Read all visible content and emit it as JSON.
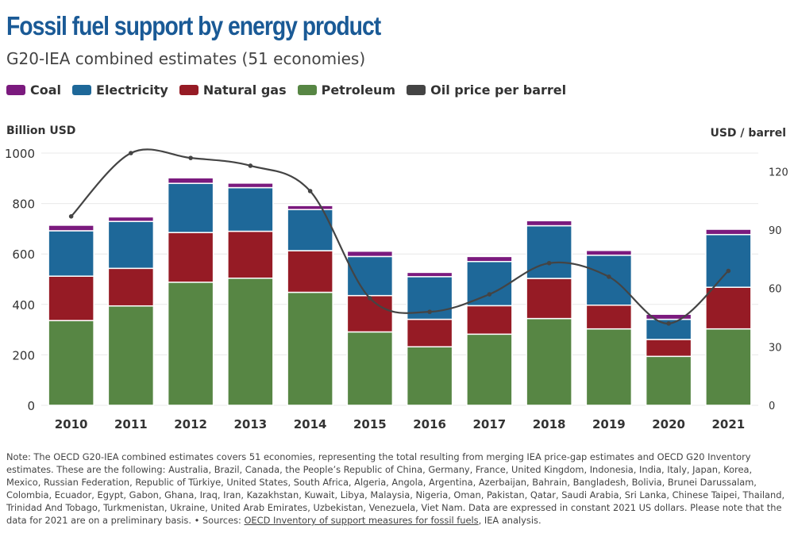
{
  "title": "Fossil fuel support by energy product",
  "subtitle": "G20-IEA combined estimates (51 economies)",
  "colors": {
    "coal": "#7b1a7e",
    "electricity": "#1e6899",
    "natural_gas": "#961b25",
    "petroleum": "#578644",
    "oil_price": "#444444"
  },
  "chart_data": {
    "type": "bar",
    "stacked": true,
    "categories": [
      "2010",
      "2011",
      "2012",
      "2013",
      "2014",
      "2015",
      "2016",
      "2017",
      "2018",
      "2019",
      "2020",
      "2021"
    ],
    "ylabel": "Billion USD",
    "y2label": "USD / barrel",
    "ylim": [
      0,
      1000
    ],
    "y2lim": [
      0,
      129.5
    ],
    "yticks": [
      "0",
      "200",
      "400",
      "600",
      "800",
      "1000"
    ],
    "y2ticks": [
      "0",
      "30",
      "60",
      "90",
      "120"
    ],
    "grid": true,
    "legend": "top-left",
    "series": [
      {
        "name": "Petroleum",
        "values": [
          336,
          394,
          488,
          504,
          448,
          291,
          232,
          282,
          344,
          303,
          194,
          303
        ]
      },
      {
        "name": "Natural gas",
        "values": [
          176,
          149,
          197,
          186,
          165,
          144,
          109,
          113,
          159,
          94,
          67,
          165
        ]
      },
      {
        "name": "Electricity",
        "values": [
          180,
          186,
          195,
          173,
          163,
          155,
          169,
          175,
          209,
          198,
          80,
          209
        ]
      },
      {
        "name": "Coal",
        "values": [
          22,
          18,
          22,
          18,
          16,
          21,
          17,
          20,
          20,
          19,
          20,
          21
        ]
      }
    ],
    "line_series": {
      "name": "Oil price per barrel",
      "axis": "right",
      "values": [
        97,
        129.5,
        127,
        123,
        110,
        55,
        48,
        57,
        73,
        66,
        42,
        69
      ]
    }
  },
  "legend": [
    "Coal",
    "Electricity",
    "Natural gas",
    "Petroleum",
    "Oil price per barrel"
  ],
  "note": {
    "text": "Note: The OECD G20-IEA combined estimates covers 51 economies, representing the total resulting from merging IEA price-gap estimates and OECD G20 Inventory estimates. These are the following: Australia, Brazil, Canada, the People’s Republic of China, Germany, France, United Kingdom, Indonesia, India, Italy, Japan, Korea, Mexico, Russian Federation, Republic of Türkiye, United States, South Africa, Algeria, Angola, Argentina, Azerbaijan, Bahrain, Bangladesh, Bolivia, Brunei Darussalam, Colombia, Ecuador, Egypt, Gabon, Ghana, Iraq, Iran, Kazakhstan, Kuwait, Libya, Malaysia, Nigeria, Oman, Pakistan, Qatar, Saudi Arabia, Sri Lanka, Chinese Taipei, Thailand, Trinidad And Tobago, Turkmenistan, Ukraine, United Arab Emirates, Uzbekistan, Venezuela, Viet Nam. Data are expressed in constant 2021 US dollars. Please note that the data for 2021 are on a preliminary basis. • Sources: ",
    "link": "OECD Inventory of support measures for fossil fuels",
    "tail": ", IEA analysis."
  }
}
